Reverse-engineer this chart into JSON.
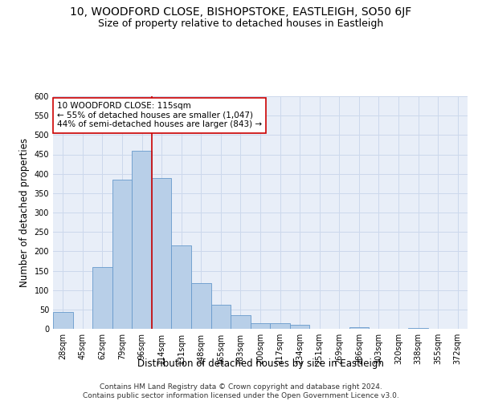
{
  "title1": "10, WOODFORD CLOSE, BISHOPSTOKE, EASTLEIGH, SO50 6JF",
  "title2": "Size of property relative to detached houses in Eastleigh",
  "xlabel": "Distribution of detached houses by size in Eastleigh",
  "ylabel": "Number of detached properties",
  "bar_labels": [
    "28sqm",
    "45sqm",
    "62sqm",
    "79sqm",
    "96sqm",
    "114sqm",
    "131sqm",
    "148sqm",
    "165sqm",
    "183sqm",
    "200sqm",
    "217sqm",
    "234sqm",
    "251sqm",
    "269sqm",
    "286sqm",
    "303sqm",
    "320sqm",
    "338sqm",
    "355sqm",
    "372sqm"
  ],
  "bar_values": [
    44,
    0,
    160,
    385,
    460,
    390,
    215,
    118,
    63,
    35,
    15,
    15,
    10,
    0,
    0,
    5,
    0,
    0,
    2,
    0,
    0
  ],
  "bar_color": "#b8cfe8",
  "bar_edge_color": "#6699cc",
  "vline_color": "#cc0000",
  "vline_x_index": 5,
  "annotation_text": "10 WOODFORD CLOSE: 115sqm\n← 55% of detached houses are smaller (1,047)\n44% of semi-detached houses are larger (843) →",
  "annotation_box_color": "#ffffff",
  "annotation_box_edge": "#cc0000",
  "ylim": [
    0,
    600
  ],
  "yticks": [
    0,
    50,
    100,
    150,
    200,
    250,
    300,
    350,
    400,
    450,
    500,
    550,
    600
  ],
  "grid_color": "#ccd8ec",
  "background_color": "#e8eef8",
  "footer_text": "Contains HM Land Registry data © Crown copyright and database right 2024.\nContains public sector information licensed under the Open Government Licence v3.0.",
  "title1_fontsize": 10,
  "title2_fontsize": 9,
  "xlabel_fontsize": 8.5,
  "ylabel_fontsize": 8.5,
  "tick_fontsize": 7,
  "annotation_fontsize": 7.5,
  "footer_fontsize": 6.5
}
